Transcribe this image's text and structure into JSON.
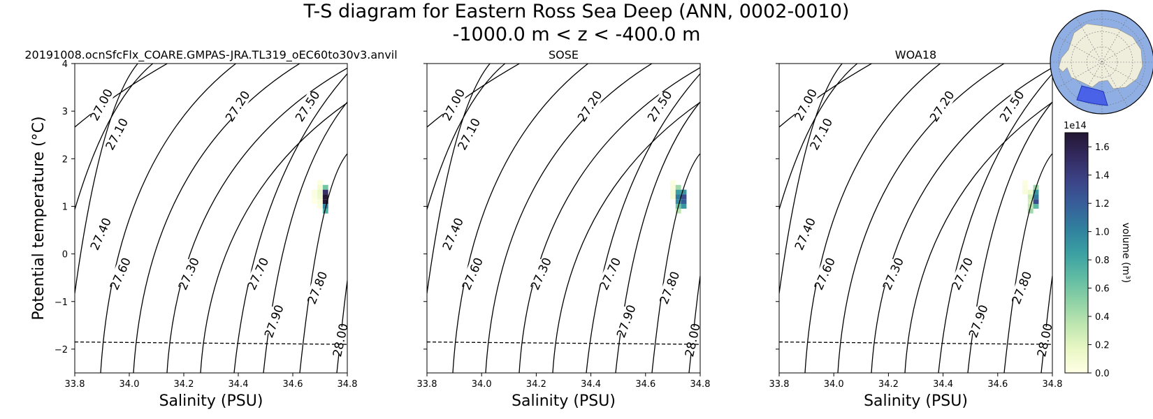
{
  "figure": {
    "title_line1": "T-S diagram for Eastern Ross Sea Deep (ANN, 0002-0010)",
    "title_line2": "-1000.0 m < z < -400.0 m"
  },
  "colorbar": {
    "label": "volume (m³)",
    "multiplier": "1e14",
    "ticks": [
      "0.0",
      "0.2",
      "0.4",
      "0.6",
      "0.8",
      "1.0",
      "1.2",
      "1.4",
      "1.6"
    ],
    "tick_values": [
      0,
      0.2,
      0.4,
      0.6,
      0.8,
      1.0,
      1.2,
      1.4,
      1.6
    ],
    "range": [
      0,
      1.7
    ],
    "colormap_stops": [
      "#ffffe5",
      "#e9f7c4",
      "#bfe6b0",
      "#8dd1a5",
      "#5ebba3",
      "#3a9fa2",
      "#30809e",
      "#375f9a",
      "#3c4387",
      "#332a60",
      "#231732"
    ]
  },
  "inset_map": {
    "description_icon": "antarctica-map-icon",
    "ocean_color": "#8eaee4",
    "land_color": "#efeddc",
    "region_color": "#3d55e8"
  },
  "colors": {
    "contour": "#000000",
    "freezing_line": "#000000"
  },
  "chart_data": [
    {
      "type": "heatmap",
      "title": "20191008.ocnSfcFlx_COARE.GMPAS-JRA.TL319_oEC60to30v3.anvil",
      "xlabel": "Salinity (PSU)",
      "ylabel": "Potential temperature (°C)",
      "xlim": [
        33.8,
        34.8
      ],
      "ylim": [
        -2.5,
        4
      ],
      "xticks": [
        "33.8",
        "34.0",
        "34.2",
        "34.4",
        "34.6",
        "34.8"
      ],
      "yticks": [
        "−2",
        "−1",
        "0",
        "1",
        "2",
        "3",
        "4"
      ],
      "density_contours": [
        "27.00",
        "27.10",
        "27.20",
        "27.30",
        "27.40",
        "27.50",
        "27.60",
        "27.70",
        "27.80",
        "27.90",
        "28.00"
      ],
      "freezing_line": {
        "s": [
          33.8,
          34.8
        ],
        "t": [
          -1.85,
          -1.9
        ]
      },
      "cells": [
        {
          "s": 34.7,
          "t": 1.0,
          "v": 0.02
        },
        {
          "s": 34.7,
          "t": 1.1,
          "v": 0.05
        },
        {
          "s": 34.7,
          "t": 1.2,
          "v": 0.12
        },
        {
          "s": 34.7,
          "t": 1.3,
          "v": 0.15
        },
        {
          "s": 34.7,
          "t": 1.4,
          "v": 0.08
        },
        {
          "s": 34.7,
          "t": 1.5,
          "v": 0.03
        },
        {
          "s": 34.68,
          "t": 1.1,
          "v": 0.01
        },
        {
          "s": 34.68,
          "t": 1.2,
          "v": 0.02
        },
        {
          "s": 34.68,
          "t": 1.3,
          "v": 0.02
        },
        {
          "s": 34.72,
          "t": 0.9,
          "v": 0.75
        },
        {
          "s": 34.72,
          "t": 1.0,
          "v": 1.0
        },
        {
          "s": 34.72,
          "t": 1.1,
          "v": 1.7
        },
        {
          "s": 34.72,
          "t": 1.2,
          "v": 1.7
        },
        {
          "s": 34.72,
          "t": 1.3,
          "v": 1.5
        },
        {
          "s": 34.72,
          "t": 1.4,
          "v": 0.6
        }
      ]
    },
    {
      "type": "heatmap",
      "title": "SOSE",
      "xlabel": "Salinity (PSU)",
      "ylabel": "",
      "xlim": [
        33.8,
        34.8
      ],
      "ylim": [
        -2.5,
        4
      ],
      "xticks": [
        "33.8",
        "34.0",
        "34.2",
        "34.4",
        "34.6",
        "34.8"
      ],
      "yticks": [],
      "density_contours": [
        "27.00",
        "27.10",
        "27.20",
        "27.30",
        "27.40",
        "27.50",
        "27.60",
        "27.70",
        "27.80",
        "27.90",
        "28.00"
      ],
      "freezing_line": {
        "s": [
          33.8,
          34.8
        ],
        "t": [
          -1.85,
          -1.9
        ]
      },
      "cells": [
        {
          "s": 34.7,
          "t": 1.4,
          "v": 0.04
        },
        {
          "s": 34.7,
          "t": 1.5,
          "v": 0.02
        },
        {
          "s": 34.7,
          "t": 1.3,
          "v": 0.08
        },
        {
          "s": 34.7,
          "t": 1.2,
          "v": 0.08
        },
        {
          "s": 34.72,
          "t": 0.9,
          "v": 0.35
        },
        {
          "s": 34.72,
          "t": 1.0,
          "v": 0.6
        },
        {
          "s": 34.72,
          "t": 1.1,
          "v": 0.95
        },
        {
          "s": 34.72,
          "t": 1.2,
          "v": 1.05
        },
        {
          "s": 34.72,
          "t": 1.3,
          "v": 0.85
        },
        {
          "s": 34.72,
          "t": 1.4,
          "v": 0.45
        },
        {
          "s": 34.74,
          "t": 1.0,
          "v": 0.9
        },
        {
          "s": 34.74,
          "t": 1.1,
          "v": 1.2
        },
        {
          "s": 34.74,
          "t": 1.2,
          "v": 1.3
        },
        {
          "s": 34.74,
          "t": 1.3,
          "v": 0.9
        }
      ]
    },
    {
      "type": "heatmap",
      "title": "WOA18",
      "xlabel": "Salinity (PSU)",
      "ylabel": "",
      "xlim": [
        33.8,
        34.8
      ],
      "ylim": [
        -2.5,
        4
      ],
      "xticks": [
        "33.8",
        "34.0",
        "34.2",
        "34.4",
        "34.6",
        "34.8"
      ],
      "yticks": [],
      "density_contours": [
        "27.00",
        "27.10",
        "27.20",
        "27.30",
        "27.40",
        "27.50",
        "27.60",
        "27.70",
        "27.80",
        "27.90",
        "28.00"
      ],
      "freezing_line": {
        "s": [
          33.8,
          34.8
        ],
        "t": [
          -1.85,
          -1.9
        ]
      },
      "cells": [
        {
          "s": 34.7,
          "t": 1.3,
          "v": 0.06
        },
        {
          "s": 34.7,
          "t": 1.4,
          "v": 0.04
        },
        {
          "s": 34.7,
          "t": 1.5,
          "v": 0.02
        },
        {
          "s": 34.72,
          "t": 0.9,
          "v": 0.45
        },
        {
          "s": 34.72,
          "t": 1.0,
          "v": 0.35
        },
        {
          "s": 34.72,
          "t": 1.1,
          "v": 0.25
        },
        {
          "s": 34.72,
          "t": 1.2,
          "v": 0.3
        },
        {
          "s": 34.72,
          "t": 1.3,
          "v": 0.15
        },
        {
          "s": 34.74,
          "t": 1.0,
          "v": 0.7
        },
        {
          "s": 34.74,
          "t": 1.1,
          "v": 1.3
        },
        {
          "s": 34.74,
          "t": 1.2,
          "v": 1.05
        },
        {
          "s": 34.74,
          "t": 1.3,
          "v": 0.9
        },
        {
          "s": 34.74,
          "t": 1.4,
          "v": 0.45
        }
      ]
    }
  ]
}
